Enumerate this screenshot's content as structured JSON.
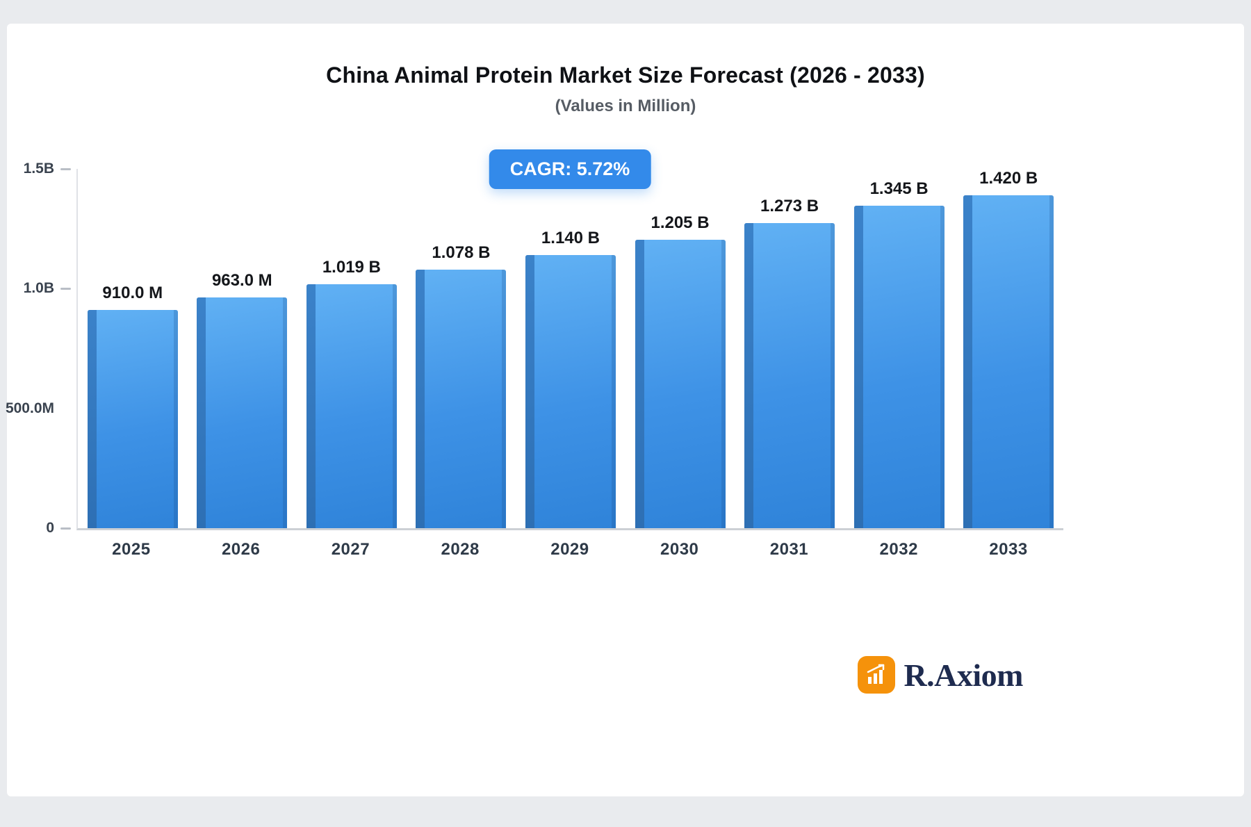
{
  "header": {
    "title": "China Animal Protein Market Size Forecast (2026 - 2033)",
    "subtitle": "(Values in Million)"
  },
  "badge": {
    "label": "CAGR: 5.72%"
  },
  "brand": {
    "name": "R.Axiom"
  },
  "colors": {
    "badge_bg": "#338AEA",
    "bar_top": "#61B1F4",
    "bar_bottom": "#2F83D9",
    "bar_side": "#2D6FB4",
    "brand_orange": "#F5920B",
    "brand_navy": "#1E2B4F"
  },
  "chart_data": {
    "type": "bar",
    "title": "China Animal Protein Market Size Forecast (2026 - 2033)",
    "subtitle": "(Values in Million)",
    "unit": "Million",
    "cagr_label": "CAGR: 5.72%",
    "categories": [
      "2025",
      "2026",
      "2027",
      "2028",
      "2029",
      "2030",
      "2031",
      "2032",
      "2033"
    ],
    "values": [
      910.0,
      963.0,
      1019,
      1078,
      1140,
      1205,
      1273,
      1345,
      1420
    ],
    "bar_labels": [
      "910.0 M",
      "963.0 M",
      "1.019 B",
      "1.078 B",
      "1.140 B",
      "1.205 B",
      "1.273 B",
      "1.345 B",
      "1.420 B"
    ],
    "xlabel": "",
    "ylabel": "",
    "ylim": [
      0,
      1500
    ],
    "yticks": [
      {
        "label": "1.5B",
        "value": 1500,
        "dash": true
      },
      {
        "label": "1.0B",
        "value": 1000,
        "dash": true
      },
      {
        "label": "500.0M",
        "value": 500,
        "dash": false
      },
      {
        "label": "0",
        "value": 0,
        "dash": true
      }
    ],
    "grid": false,
    "legend": "none"
  }
}
